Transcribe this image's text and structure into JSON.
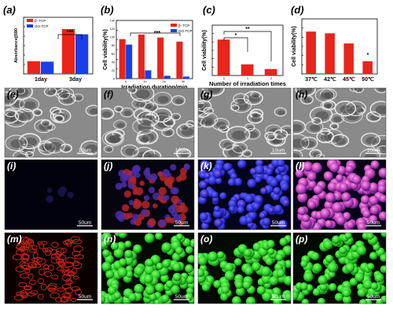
{
  "panels": {
    "a": {
      "label": "(a)"
    },
    "b": {
      "label": "(b)"
    },
    "c": {
      "label": "(c)"
    },
    "d": {
      "label": "(d)"
    }
  },
  "chart_data": [
    {
      "id": "a",
      "type": "bar",
      "ylabel": "Absorbance||590",
      "categories": [
        "1day",
        "3day"
      ],
      "series": [
        {
          "name": "β- TCP",
          "color": "#e8241b",
          "values": [
            0.27,
            0.95
          ]
        },
        {
          "name": "GO-TCP",
          "color": "#1a3ee8",
          "values": [
            0.26,
            0.84
          ]
        }
      ],
      "ylim": [
        0,
        1.2
      ],
      "annotations": [
        "***"
      ]
    },
    {
      "id": "b",
      "type": "bar",
      "xlabel": "Irradiation duration/min",
      "ylabel": "Cell viability(%)",
      "categories": [
        "0",
        "10",
        "20",
        "30"
      ],
      "series": [
        {
          "name": "β- TCP",
          "color": "#e8241b",
          "values": [
            95,
            106,
            99,
            89
          ]
        },
        {
          "name": "GO-TCP",
          "color": "#1a3ee8",
          "values": [
            82,
            20,
            7,
            5
          ]
        }
      ],
      "ylim": [
        0,
        140
      ],
      "yticks": [
        "0",
        "20",
        "40",
        "60",
        "80",
        "100",
        "120",
        "140"
      ],
      "annotations": [
        "***"
      ]
    },
    {
      "id": "c",
      "type": "bar",
      "xlabel": "Number of irradiation times",
      "ylabel": "Cell viability(%)",
      "categories": [
        "0",
        "1",
        "2"
      ],
      "series": [
        {
          "name": "",
          "color": "#e8241b",
          "values": [
            100,
            31,
            18
          ]
        }
      ],
      "ylim": [
        0,
        140
      ],
      "annotations": [
        "*",
        "**"
      ]
    },
    {
      "id": "d",
      "type": "bar",
      "ylabel": "Cell viability(%)",
      "categories": [
        "37℃",
        "42℃",
        "45℃",
        "50℃"
      ],
      "series": [
        {
          "name": "",
          "color": "#e8241b",
          "values": [
            100,
            96,
            72,
            30
          ]
        }
      ],
      "ylim": [
        0,
        130
      ],
      "annotations": [
        "*"
      ]
    }
  ],
  "tiles": [
    {
      "id": "e",
      "label": "(e)",
      "scale": "10um",
      "kind": "sem"
    },
    {
      "id": "f",
      "label": "(f)",
      "scale": "10um",
      "kind": "sem"
    },
    {
      "id": "g",
      "label": "(g)",
      "scale": "10um",
      "kind": "sem"
    },
    {
      "id": "h",
      "label": "(h)",
      "scale": "10um",
      "kind": "sem"
    },
    {
      "id": "i",
      "label": "(i)",
      "scale": "50um",
      "kind": "dark"
    },
    {
      "id": "j",
      "label": "(j)",
      "scale": "50um",
      "kind": "redblue"
    },
    {
      "id": "k",
      "label": "(k)",
      "scale": "50um",
      "kind": "blue"
    },
    {
      "id": "l",
      "label": "(l)",
      "scale": "50um",
      "kind": "pink"
    },
    {
      "id": "m",
      "label": "(m)",
      "scale": "50um",
      "kind": "red"
    },
    {
      "id": "n",
      "label": "(n)",
      "scale": "50um",
      "kind": "green"
    },
    {
      "id": "o",
      "label": "(o)",
      "scale": "50um",
      "kind": "green"
    },
    {
      "id": "p",
      "label": "(p)",
      "scale": "50um",
      "kind": "greenpart"
    }
  ]
}
